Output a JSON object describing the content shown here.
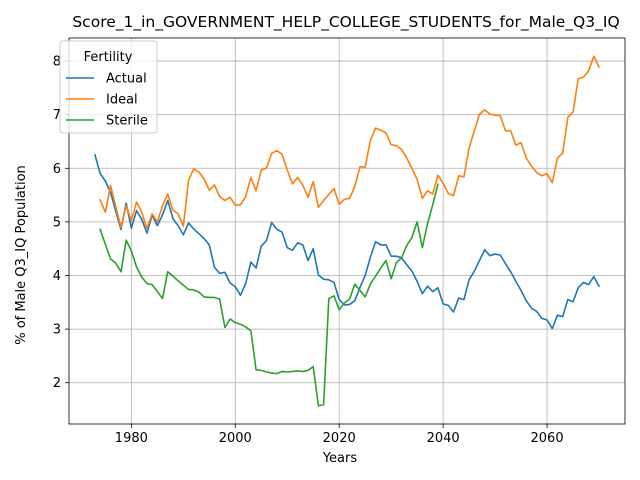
{
  "chart_data": {
    "type": "line",
    "title": "Score_1_in_GOVERNMENT_HELP_COLLEGE_STUDENTS_for_Male_Q3_IQ",
    "xlabel": "Years",
    "ylabel": "% of Male Q3_IQ Population",
    "xlim": [
      1968,
      2075
    ],
    "ylim": [
      1.23,
      8.43
    ],
    "xticks": [
      1980,
      2000,
      2020,
      2040,
      2060
    ],
    "yticks": [
      2,
      3,
      4,
      5,
      6,
      7,
      8
    ],
    "grid": true,
    "legend": {
      "title": "Fertility",
      "placement": "top-left"
    },
    "series": [
      {
        "name": "Actual",
        "color": "#1f77b4",
        "x": [
          1973,
          1974,
          1975,
          1976,
          1977,
          1978,
          1979,
          1980,
          1981,
          1982,
          1983,
          1984,
          1985,
          1986,
          1987,
          1988,
          1989,
          1990,
          1991,
          1992,
          1993,
          1994,
          1995,
          1996,
          1997,
          1998,
          1999,
          2000,
          2001,
          2002,
          2003,
          2004,
          2005,
          2006,
          2007,
          2008,
          2009,
          2010,
          2011,
          2012,
          2013,
          2014,
          2015,
          2016,
          2017,
          2018,
          2019,
          2020,
          2021,
          2022,
          2023,
          2024,
          2025,
          2026,
          2027,
          2028,
          2029,
          2030,
          2031,
          2032,
          2033,
          2034,
          2035,
          2036,
          2037,
          2038,
          2039,
          2040,
          2041,
          2042,
          2043,
          2044,
          2045,
          2046,
          2047,
          2048,
          2049,
          2050,
          2051,
          2052,
          2053,
          2054,
          2055,
          2056,
          2057,
          2058,
          2059,
          2060,
          2061,
          2062,
          2063,
          2064,
          2065,
          2066,
          2067,
          2068,
          2069,
          2070
        ],
        "values": [
          6.25,
          5.9,
          5.76,
          5.55,
          5.2,
          4.86,
          5.35,
          4.88,
          5.21,
          5.05,
          4.79,
          5.13,
          4.93,
          5.13,
          5.4,
          5.06,
          4.93,
          4.76,
          4.98,
          4.87,
          4.78,
          4.69,
          4.57,
          4.15,
          4.04,
          4.06,
          3.86,
          3.79,
          3.63,
          3.85,
          4.25,
          4.14,
          4.55,
          4.65,
          4.99,
          4.86,
          4.81,
          4.52,
          4.47,
          4.61,
          4.57,
          4.28,
          4.5,
          4.01,
          3.93,
          3.92,
          3.87,
          3.55,
          3.45,
          3.46,
          3.53,
          3.78,
          4.0,
          4.34,
          4.63,
          4.57,
          4.57,
          4.36,
          4.36,
          4.33,
          4.2,
          4.08,
          3.89,
          3.66,
          3.8,
          3.7,
          3.77,
          3.47,
          3.44,
          3.32,
          3.58,
          3.55,
          3.92,
          4.08,
          4.28,
          4.48,
          4.37,
          4.4,
          4.38,
          4.22,
          4.07,
          3.89,
          3.72,
          3.53,
          3.39,
          3.33,
          3.2,
          3.17,
          3.01,
          3.26,
          3.23,
          3.55,
          3.51,
          3.77,
          3.87,
          3.83,
          3.98,
          3.8
        ]
      },
      {
        "name": "Ideal",
        "color": "#ff7f0e",
        "x": [
          1974,
          1975,
          1976,
          1977,
          1978,
          1979,
          1980,
          1981,
          1982,
          1983,
          1984,
          1985,
          1986,
          1987,
          1988,
          1989,
          1990,
          1991,
          1992,
          1993,
          1994,
          1995,
          1996,
          1997,
          1998,
          1999,
          2000,
          2001,
          2002,
          2003,
          2004,
          2005,
          2006,
          2007,
          2008,
          2009,
          2010,
          2011,
          2012,
          2013,
          2014,
          2015,
          2016,
          2017,
          2018,
          2019,
          2020,
          2021,
          2022,
          2023,
          2024,
          2025,
          2026,
          2027,
          2028,
          2029,
          2030,
          2031,
          2032,
          2033,
          2034,
          2035,
          2036,
          2037,
          2038,
          2039,
          2040,
          2041,
          2042,
          2043,
          2044,
          2045,
          2046,
          2047,
          2048,
          2049,
          2050,
          2051,
          2052,
          2053,
          2054,
          2055,
          2056,
          2057,
          2058,
          2059,
          2060,
          2061,
          2062,
          2063,
          2064,
          2065,
          2066,
          2067,
          2068,
          2069,
          2070
        ],
        "values": [
          5.41,
          5.18,
          5.68,
          5.28,
          4.9,
          5.3,
          5.02,
          5.37,
          5.18,
          4.88,
          5.15,
          5.0,
          5.3,
          5.52,
          5.22,
          5.15,
          4.92,
          5.77,
          5.99,
          5.93,
          5.8,
          5.59,
          5.69,
          5.47,
          5.4,
          5.46,
          5.31,
          5.32,
          5.47,
          5.83,
          5.58,
          5.97,
          6.0,
          6.28,
          6.33,
          6.26,
          5.97,
          5.71,
          5.83,
          5.68,
          5.46,
          5.75,
          5.27,
          5.4,
          5.51,
          5.62,
          5.33,
          5.42,
          5.44,
          5.66,
          6.03,
          6.02,
          6.52,
          6.75,
          6.71,
          6.66,
          6.44,
          6.42,
          6.35,
          6.19,
          6.0,
          5.79,
          5.44,
          5.58,
          5.52,
          5.87,
          5.72,
          5.53,
          5.49,
          5.86,
          5.84,
          6.38,
          6.7,
          7.01,
          7.09,
          7.01,
          6.99,
          6.98,
          6.7,
          6.7,
          6.43,
          6.48,
          6.19,
          6.04,
          5.92,
          5.86,
          5.9,
          5.73,
          6.19,
          6.28,
          6.95,
          7.05,
          7.67,
          7.7,
          7.82,
          8.09,
          7.89
        ]
      },
      {
        "name": "Sterile",
        "color": "#2ca02c",
        "x": [
          1974,
          1975,
          1976,
          1977,
          1978,
          1979,
          1980,
          1981,
          1982,
          1983,
          1984,
          1985,
          1986,
          1987,
          1988,
          1989,
          1990,
          1991,
          1992,
          1993,
          1994,
          1995,
          1996,
          1997,
          1998,
          1999,
          2000,
          2001,
          2002,
          2003,
          2004,
          2005,
          2006,
          2007,
          2008,
          2009,
          2010,
          2011,
          2012,
          2013,
          2014,
          2015,
          2016,
          2017,
          2018,
          2019,
          2020,
          2021,
          2022,
          2023,
          2024,
          2025,
          2026,
          2027,
          2028,
          2029,
          2030,
          2031,
          2032,
          2033,
          2034,
          2035,
          2036,
          2037,
          2038,
          2039
        ],
        "values": [
          4.86,
          4.58,
          4.31,
          4.23,
          4.07,
          4.66,
          4.46,
          4.16,
          3.97,
          3.85,
          3.83,
          3.7,
          3.57,
          4.07,
          3.99,
          3.9,
          3.82,
          3.74,
          3.73,
          3.69,
          3.6,
          3.59,
          3.59,
          3.56,
          3.03,
          3.19,
          3.12,
          3.09,
          3.04,
          2.97,
          2.24,
          2.23,
          2.2,
          2.18,
          2.17,
          2.21,
          2.2,
          2.21,
          2.22,
          2.21,
          2.23,
          2.3,
          1.57,
          1.59,
          3.57,
          3.62,
          3.36,
          3.49,
          3.56,
          3.84,
          3.72,
          3.6,
          3.84,
          3.99,
          4.14,
          4.28,
          3.94,
          4.24,
          4.33,
          4.56,
          4.71,
          5.0,
          4.52,
          4.97,
          5.32,
          5.7
        ]
      }
    ]
  }
}
